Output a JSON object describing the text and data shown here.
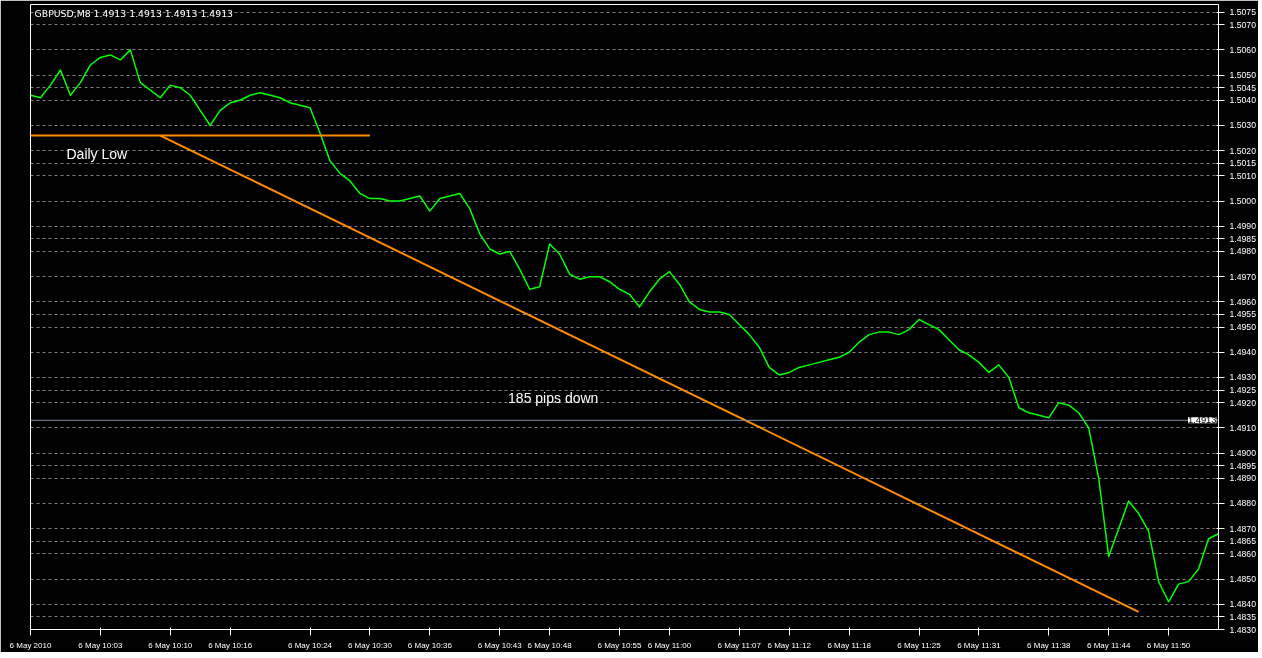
{
  "chart_data": {
    "type": "line",
    "title": "GBPUSD,M8  1.4913 1.4913 1.4913 1.4913",
    "xlim": [
      "2010-05-06T09:56",
      "2010-05-06T11:55"
    ],
    "ylim": [
      1.483,
      1.5078
    ],
    "xticks": [
      {
        "value": "2010-05-06T09:56",
        "label": "6 May 2010"
      },
      {
        "value": "2010-05-06T10:03",
        "label": "6 May 10:03"
      },
      {
        "value": "2010-05-06T10:10",
        "label": "6 May 10:10"
      },
      {
        "value": "2010-05-06T10:16",
        "label": "6 May 10:16"
      },
      {
        "value": "2010-05-06T10:24",
        "label": "6 May 10:24"
      },
      {
        "value": "2010-05-06T10:30",
        "label": "6 May 10:30"
      },
      {
        "value": "2010-05-06T10:36",
        "label": "6 May 10:36"
      },
      {
        "value": "2010-05-06T10:43",
        "label": "6 May 10:43"
      },
      {
        "value": "2010-05-06T10:48",
        "label": "6 May 10:48"
      },
      {
        "value": "2010-05-06T10:55",
        "label": "6 May 10:55"
      },
      {
        "value": "2010-05-06T11:00",
        "label": "6 May 11:00"
      },
      {
        "value": "2010-05-06T11:07",
        "label": "6 May 11:07"
      },
      {
        "value": "2010-05-06T11:12",
        "label": "6 May 11:12"
      },
      {
        "value": "2010-05-06T11:18",
        "label": "6 May 11:18"
      },
      {
        "value": "2010-05-06T11:25",
        "label": "6 May 11:25"
      },
      {
        "value": "2010-05-06T11:31",
        "label": "6 May 11:31"
      },
      {
        "value": "2010-05-06T11:38",
        "label": "6 May 11:38"
      },
      {
        "value": "2010-05-06T11:44",
        "label": "6 May 11:44"
      },
      {
        "value": "2010-05-06T11:50",
        "label": "6 May 11:50"
      }
    ],
    "yticks": [
      1.5075,
      {
        "value": 1.507,
        "label": "1.5070"
      },
      {
        "value": 1.506,
        "label": "1.5060"
      },
      {
        "value": 1.505,
        "label": "1.5050"
      },
      1.5045,
      {
        "value": 1.504,
        "label": "1.5040"
      },
      {
        "value": 1.503,
        "label": "1.5030"
      },
      {
        "value": 1.502,
        "label": "1.5020"
      },
      1.5015,
      {
        "value": 1.501,
        "label": "1.5010"
      },
      {
        "value": 1.5,
        "label": "1.5000"
      },
      {
        "value": 1.499,
        "label": "1.4990"
      },
      1.4985,
      {
        "value": 1.498,
        "label": "1.4980"
      },
      {
        "value": 1.497,
        "label": "1.4970"
      },
      {
        "value": 1.496,
        "label": "1.4960"
      },
      1.4955,
      {
        "value": 1.495,
        "label": "1.4950"
      },
      {
        "value": 1.494,
        "label": "1.4940"
      },
      {
        "value": 1.493,
        "label": "1.4930"
      },
      1.4925,
      {
        "value": 1.492,
        "label": "1.4920"
      },
      {
        "value": 1.491,
        "label": "1.4910"
      },
      {
        "value": 1.49,
        "label": "1.4900"
      },
      1.4895,
      {
        "value": 1.489,
        "label": "1.4890"
      },
      {
        "value": 1.488,
        "label": "1.4880"
      },
      {
        "value": 1.487,
        "label": "1.4870"
      },
      1.4865,
      {
        "value": 1.486,
        "label": "1.4860"
      },
      {
        "value": 1.485,
        "label": "1.4850"
      },
      {
        "value": 1.484,
        "label": "1.4840"
      },
      1.4835,
      {
        "value": 1.483,
        "label": "1.4830"
      }
    ],
    "grid": "y",
    "ref_lines": [
      {
        "axis": "y",
        "value": 1.4913,
        "label": "1.4913",
        "color": "#8090a0"
      }
    ],
    "annotations": [
      "Daily Low",
      "185 pips down"
    ],
    "series": [
      {
        "color": "#00ff00",
        "x": [
          "2010-05-06T09:56",
          "2010-05-06T09:57",
          "2010-05-06T09:58",
          "2010-05-06T09:59",
          "2010-05-06T10:00",
          "2010-05-06T10:01",
          "2010-05-06T10:02",
          "2010-05-06T10:03",
          "2010-05-06T10:04",
          "2010-05-06T10:05",
          "2010-05-06T10:06",
          "2010-05-06T10:07",
          "2010-05-06T10:08",
          "2010-05-06T10:09",
          "2010-05-06T10:10",
          "2010-05-06T10:11",
          "2010-05-06T10:12",
          "2010-05-06T10:13",
          "2010-05-06T10:14",
          "2010-05-06T10:15",
          "2010-05-06T10:16",
          "2010-05-06T10:17",
          "2010-05-06T10:18",
          "2010-05-06T10:19",
          "2010-05-06T10:20",
          "2010-05-06T10:21",
          "2010-05-06T10:22",
          "2010-05-06T10:23",
          "2010-05-06T10:24",
          "2010-05-06T10:25",
          "2010-05-06T10:26",
          "2010-05-06T10:27",
          "2010-05-06T10:28",
          "2010-05-06T10:29",
          "2010-05-06T10:30",
          "2010-05-06T10:31",
          "2010-05-06T10:32",
          "2010-05-06T10:33",
          "2010-05-06T10:34",
          "2010-05-06T10:35",
          "2010-05-06T10:36",
          "2010-05-06T10:37",
          "2010-05-06T10:38",
          "2010-05-06T10:39",
          "2010-05-06T10:40",
          "2010-05-06T10:41",
          "2010-05-06T10:42",
          "2010-05-06T10:43",
          "2010-05-06T10:44",
          "2010-05-06T10:45",
          "2010-05-06T10:46",
          "2010-05-06T10:47",
          "2010-05-06T10:48",
          "2010-05-06T10:49",
          "2010-05-06T10:50",
          "2010-05-06T10:51",
          "2010-05-06T10:52",
          "2010-05-06T10:53",
          "2010-05-06T10:54",
          "2010-05-06T10:55",
          "2010-05-06T10:56",
          "2010-05-06T10:57",
          "2010-05-06T10:58",
          "2010-05-06T10:59",
          "2010-05-06T11:00",
          "2010-05-06T11:01",
          "2010-05-06T11:02",
          "2010-05-06T11:03",
          "2010-05-06T11:04",
          "2010-05-06T11:05",
          "2010-05-06T11:06",
          "2010-05-06T11:07",
          "2010-05-06T11:08",
          "2010-05-06T11:09",
          "2010-05-06T11:10",
          "2010-05-06T11:11",
          "2010-05-06T11:12",
          "2010-05-06T11:13",
          "2010-05-06T11:14",
          "2010-05-06T11:15",
          "2010-05-06T11:16",
          "2010-05-06T11:17",
          "2010-05-06T11:18",
          "2010-05-06T11:19",
          "2010-05-06T11:20",
          "2010-05-06T11:21",
          "2010-05-06T11:22",
          "2010-05-06T11:23",
          "2010-05-06T11:24",
          "2010-05-06T11:25",
          "2010-05-06T11:26",
          "2010-05-06T11:27",
          "2010-05-06T11:28",
          "2010-05-06T11:29",
          "2010-05-06T11:30",
          "2010-05-06T11:31",
          "2010-05-06T11:32",
          "2010-05-06T11:33",
          "2010-05-06T11:34",
          "2010-05-06T11:35",
          "2010-05-06T11:36",
          "2010-05-06T11:37",
          "2010-05-06T11:38",
          "2010-05-06T11:39",
          "2010-05-06T11:40",
          "2010-05-06T11:41",
          "2010-05-06T11:42",
          "2010-05-06T11:43",
          "2010-05-06T11:44",
          "2010-05-06T11:45",
          "2010-05-06T11:46",
          "2010-05-06T11:47",
          "2010-05-06T11:48",
          "2010-05-06T11:49",
          "2010-05-06T11:50",
          "2010-05-06T11:51",
          "2010-05-06T11:52",
          "2010-05-06T11:53",
          "2010-05-06T11:54",
          "2010-05-06T11:55"
        ],
        "values": [
          1.5042,
          1.5041,
          1.5046,
          1.5052,
          1.5042,
          1.5047,
          1.5054,
          1.5057,
          1.5058,
          1.5056,
          1.506,
          1.5047,
          1.5044,
          1.5041,
          1.5046,
          1.5045,
          1.5042,
          1.5036,
          1.503,
          1.5036,
          1.5039,
          1.504,
          1.5042,
          1.5043,
          1.5042,
          1.5041,
          1.5039,
          1.5038,
          1.5037,
          1.5027,
          1.5016,
          1.5011,
          1.5008,
          1.5003,
          1.5001,
          1.5001,
          1.5,
          1.5,
          1.5001,
          1.5002,
          1.4996,
          1.5001,
          1.5002,
          1.5003,
          1.4997,
          1.4987,
          1.4981,
          1.4979,
          1.498,
          1.4973,
          1.4965,
          1.4966,
          1.4983,
          1.4979,
          1.4971,
          1.4969,
          1.497,
          1.497,
          1.4968,
          1.4965,
          1.4963,
          1.4958,
          1.4964,
          1.4969,
          1.4972,
          1.4967,
          1.496,
          1.4957,
          1.4956,
          1.4956,
          1.4955,
          1.4951,
          1.4947,
          1.4942,
          1.4934,
          1.4931,
          1.4932,
          1.4934,
          1.4935,
          1.4936,
          1.4937,
          1.4938,
          1.494,
          1.4944,
          1.4947,
          1.4948,
          1.4948,
          1.4947,
          1.4949,
          1.4953,
          1.4951,
          1.4949,
          1.4945,
          1.4941,
          1.4939,
          1.4936,
          1.4932,
          1.4935,
          1.493,
          1.4918,
          1.4916,
          1.4915,
          1.4914,
          1.492,
          1.4919,
          1.4916,
          1.491,
          1.489,
          1.4859,
          1.487,
          1.4881,
          1.4876,
          1.4869,
          1.4849,
          1.4841,
          1.4848,
          1.4849,
          1.4854,
          1.4866,
          1.4868
        ]
      },
      {
        "type": "line",
        "color": "#ff8c00",
        "x": [
          "2010-05-06T09:56",
          "2010-05-06T10:30"
        ],
        "values": [
          1.5026,
          1.5026
        ]
      },
      {
        "type": "line",
        "color": "#ff8c00",
        "x": [
          "2010-05-06T10:09",
          "2010-05-06T11:47"
        ],
        "values": [
          1.5026,
          1.4837
        ]
      }
    ]
  }
}
